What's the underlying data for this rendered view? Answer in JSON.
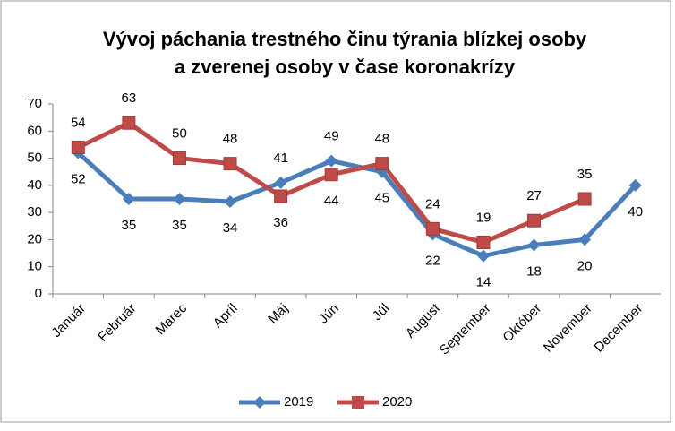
{
  "chart_data": {
    "type": "line",
    "title": [
      "Vývoj páchania trestného činu týrania blízkej osoby",
      "a zverenej osoby v čase koronakrízy"
    ],
    "categories": [
      "Január",
      "Február",
      "Marec",
      "Apríl",
      "Máj",
      "Jún",
      "Júl",
      "August",
      "September",
      "Október",
      "November",
      "December"
    ],
    "series": [
      {
        "name": "2019",
        "color": "#4a7ebb",
        "marker": "diamond",
        "values": [
          52,
          35,
          35,
          34,
          41,
          49,
          45,
          22,
          14,
          18,
          20,
          40
        ]
      },
      {
        "name": "2020",
        "color": "#be4b48",
        "marker": "square",
        "values": [
          54,
          63,
          50,
          48,
          36,
          44,
          48,
          24,
          19,
          27,
          35,
          null
        ]
      }
    ],
    "ylim": [
      0,
      70
    ],
    "yticks": [
      0,
      10,
      20,
      30,
      40,
      50,
      60,
      70
    ],
    "grid": false,
    "legend": "bottom"
  }
}
